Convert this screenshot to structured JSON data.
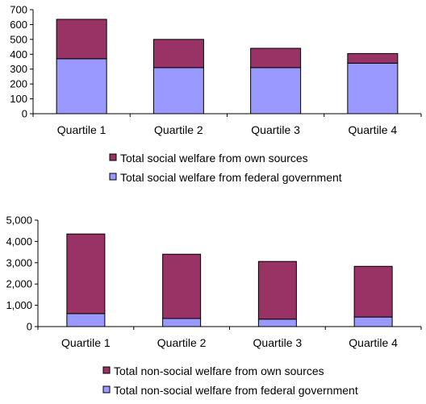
{
  "colors": {
    "own_sources": "#993366",
    "federal": "#9999ff"
  },
  "chart_data": [
    {
      "type": "bar",
      "stacked": true,
      "categories": [
        "Quartile 1",
        "Quartile 2",
        "Quartile 3",
        "Quartile 4"
      ],
      "series": [
        {
          "name": "Total social welfare from federal government",
          "values": [
            370,
            310,
            310,
            340
          ],
          "color": "#9999ff"
        },
        {
          "name": "Total social welfare from own sources",
          "values": [
            265,
            190,
            130,
            65
          ],
          "color": "#993366"
        }
      ],
      "ylim": [
        0,
        700
      ],
      "yticks": [
        0,
        100,
        200,
        300,
        400,
        500,
        600,
        700
      ],
      "ytick_labels": [
        "0",
        "100",
        "200",
        "300",
        "400",
        "500",
        "600",
        "700"
      ],
      "grid": false,
      "legend": {
        "placement": "bottom",
        "entries": [
          "Total social welfare from own sources",
          "Total social welfare from federal government"
        ]
      }
    },
    {
      "type": "bar",
      "stacked": true,
      "categories": [
        "Quartile 1",
        "Quartile 2",
        "Quartile 3",
        "Quartile 4"
      ],
      "series": [
        {
          "name": "Total non-social welfare from federal government",
          "values": [
            610,
            380,
            350,
            450
          ],
          "color": "#9999ff"
        },
        {
          "name": "Total non-social welfare from own sources",
          "values": [
            3740,
            3020,
            2710,
            2380
          ],
          "color": "#993366"
        }
      ],
      "ylim": [
        0,
        5000
      ],
      "yticks": [
        0,
        1000,
        2000,
        3000,
        4000,
        5000
      ],
      "ytick_labels": [
        "0",
        "1,000",
        "2,000",
        "3,000",
        "4,000",
        "5,000"
      ],
      "grid": false,
      "legend": {
        "placement": "bottom",
        "entries": [
          "Total non-social welfare from own sources",
          "Total non-social welfare from federal government"
        ]
      }
    }
  ]
}
